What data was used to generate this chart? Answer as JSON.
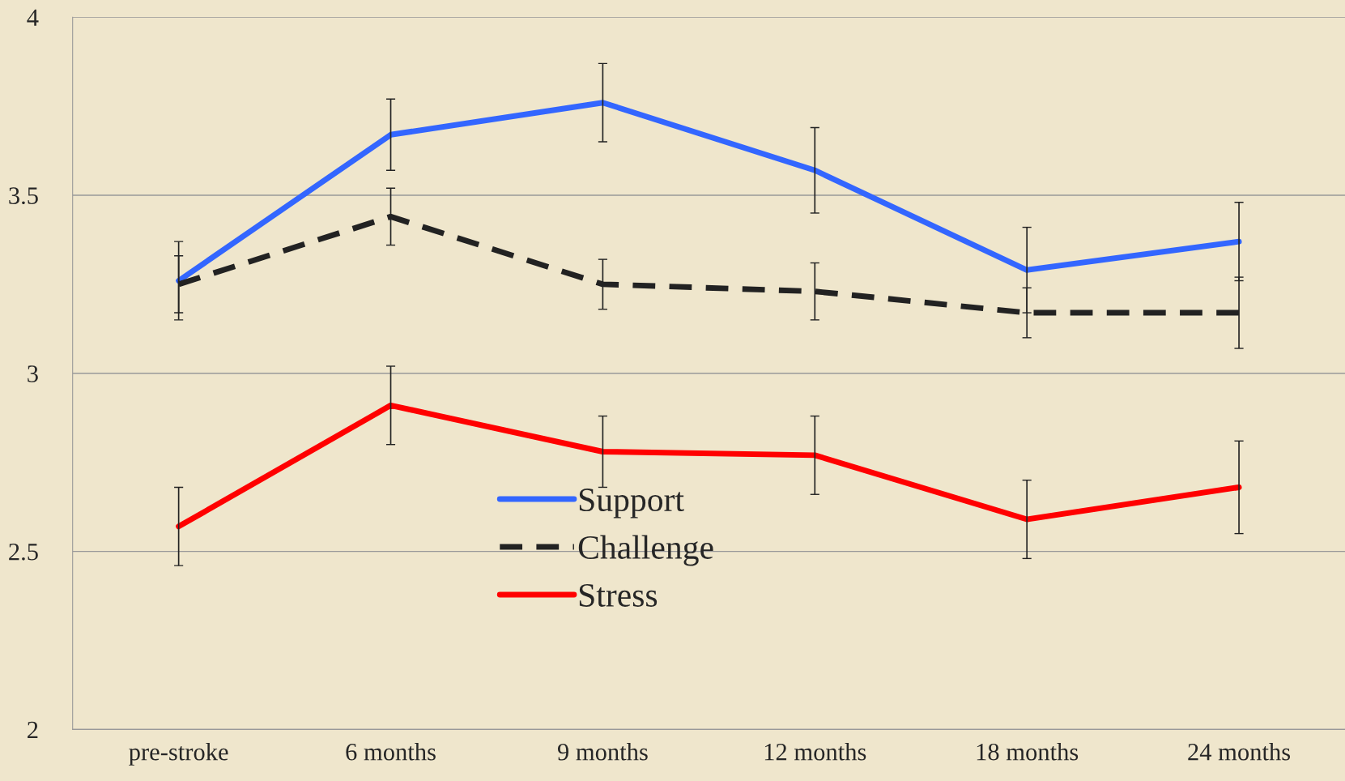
{
  "chart_data": {
    "type": "line",
    "categories": [
      "pre-stroke",
      "6 months",
      "9 months",
      "12 months",
      "18 months",
      "24 months"
    ],
    "series": [
      {
        "name": "Support",
        "color": "#3366ff",
        "line_style": "solid",
        "values": [
          3.26,
          3.67,
          3.76,
          3.57,
          3.29,
          3.37
        ],
        "errors": [
          0.11,
          0.1,
          0.11,
          0.12,
          0.12,
          0.11
        ]
      },
      {
        "name": "Challenge",
        "color": "#222222",
        "line_style": "dashed",
        "values": [
          3.25,
          3.44,
          3.25,
          3.23,
          3.17,
          3.17
        ],
        "errors": [
          0.08,
          0.08,
          0.07,
          0.08,
          0.07,
          0.1
        ]
      },
      {
        "name": "Stress",
        "color": "#ff0000",
        "line_style": "solid",
        "values": [
          2.57,
          2.91,
          2.78,
          2.77,
          2.59,
          2.68
        ],
        "errors": [
          0.11,
          0.11,
          0.1,
          0.11,
          0.11,
          0.13
        ]
      }
    ],
    "ylim": [
      2,
      4
    ],
    "yticks": [
      2,
      2.5,
      3,
      3.5,
      4
    ],
    "grid": "y",
    "legend": "bottom",
    "marker": "none"
  }
}
